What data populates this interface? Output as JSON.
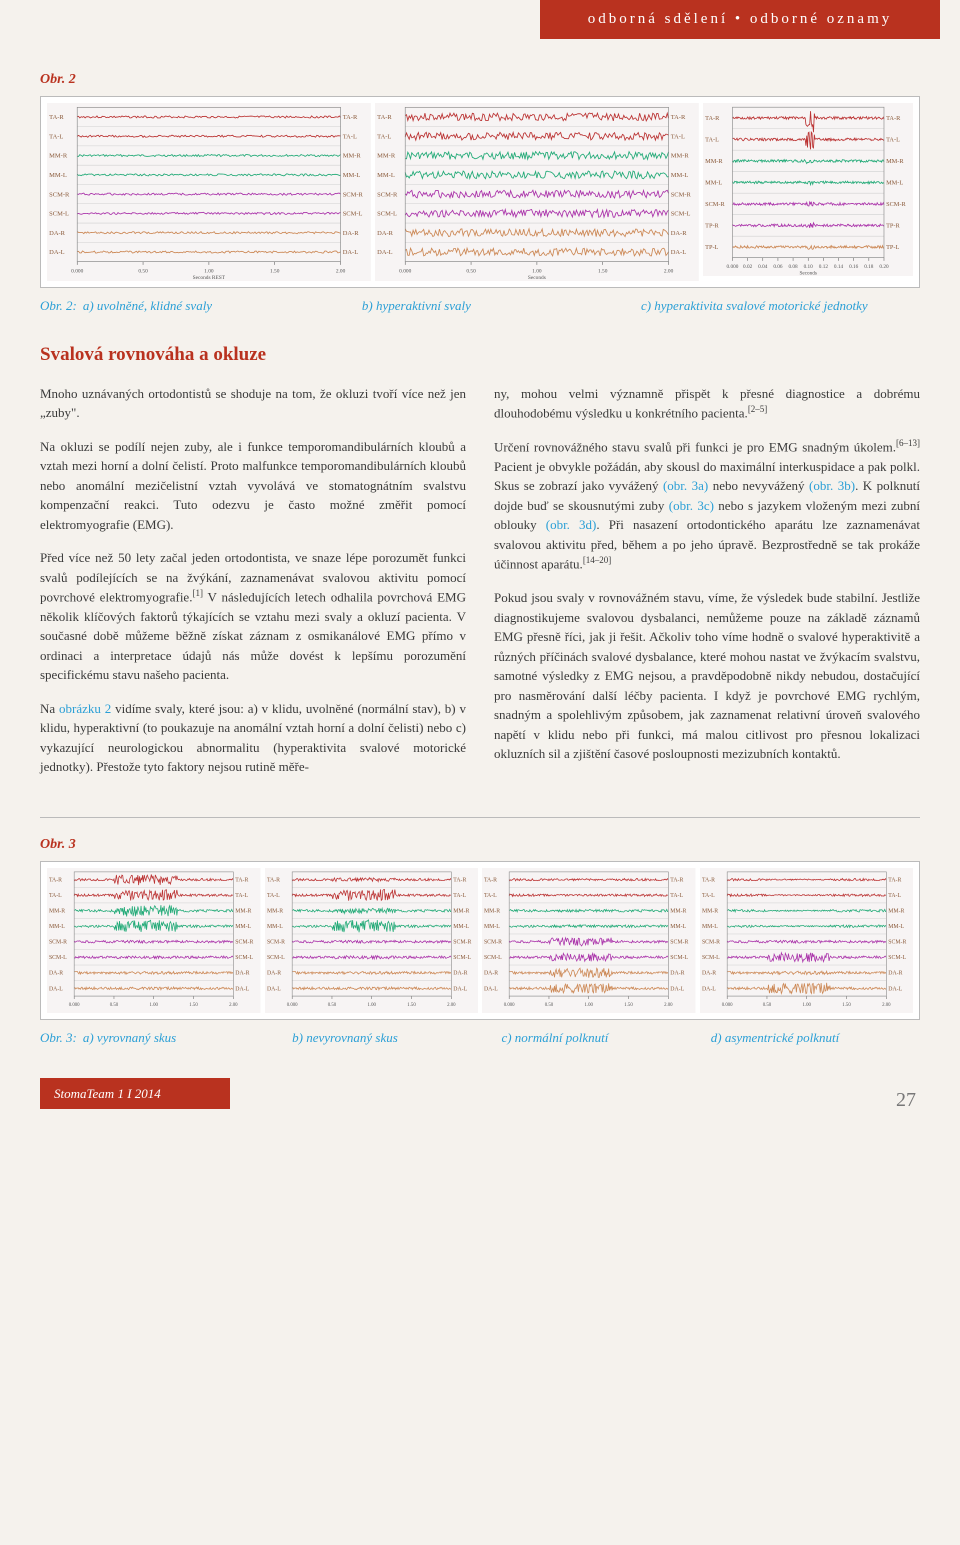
{
  "header_band": "odborná sdělení • odborné oznamy",
  "fig2": {
    "label": "Obr. 2",
    "caption_pre": "Obr. 2:",
    "captions": [
      "a) uvolněné, klidné svaly",
      "b) hyperaktivní svaly",
      "c) hyperaktivita svalové motorické jednotky"
    ],
    "channels": [
      "TA-R",
      "TA-L",
      "MM-R",
      "MM-L",
      "SCM-R",
      "SCM-L",
      "DA-R",
      "DA-L"
    ],
    "channels_right_c": [
      "TA-R",
      "TA-L",
      "MM-R",
      "MM-L",
      "SCM-R",
      "TP-R",
      "TP-L"
    ],
    "label_fontsize": 6,
    "label_color": "#8a5a3a",
    "channel_colors": [
      "#b33",
      "#b33",
      "#2a7",
      "#2a7",
      "#a3a",
      "#a3a",
      "#c85",
      "#c85"
    ],
    "background": "#f7f4f4",
    "gridline_color": "#d0d0d0",
    "xaxis_a": {
      "min": 0,
      "max": 2.0,
      "ticks": [
        0.0,
        0.5,
        1.0,
        1.5,
        2.0
      ],
      "label": "Seconds REST"
    },
    "xaxis_b": {
      "min": 0,
      "max": 2.0,
      "ticks": [
        0.0,
        0.5,
        1.0,
        1.5,
        2.0
      ],
      "label": "Seconds"
    },
    "xaxis_c": {
      "min": 0,
      "max": 0.2,
      "ticks": [
        0.0,
        0.02,
        0.04,
        0.06,
        0.08,
        0.1,
        0.12,
        0.14,
        0.16,
        0.18,
        0.2
      ],
      "label": "Seconds"
    },
    "amplitude_a": 0.12,
    "amplitude_b": 0.45,
    "amplitude_c_burst": 0.7
  },
  "heading": "Svalová rovnováha a okluze",
  "col1": {
    "p1": "Mnoho uznávaných ortodontistů se shoduje na tom, že okluzi tvoří více než jen „zuby\".",
    "p2": "Na okluzi se podílí nejen zuby, ale i funkce temporomandibulárních kloubů a vztah mezi horní a dolní čelistí. Proto malfunkce temporomandibulárních kloubů nebo anomální mezičelistní vztah vyvolává ve stomatognátním svalstvu kompenzační reakci. Tuto odezvu je často možné změřit pomocí elektromyografie (EMG).",
    "p3_a": "Před více než 50 lety začal jeden ortodontista, ve snaze lépe porozumět funkci svalů podílejících se na žvýkání, zaznamenávat svalovou aktivitu pomocí povrchové elektromyografie.",
    "p3_sup": "[1]",
    "p3_b": " V následujících letech odhalila povrchová EMG několik klíčových faktorů týkajících se vztahu mezi svaly a okluzí pacienta. V současné době můžeme běžně získat záznam z osmikanálové EMG přímo v ordinaci a interpretace údajů nás může dovést k lepšímu porozumění specifickému stavu našeho pacienta.",
    "p4_a": "Na ",
    "p4_link": "obrázku 2",
    "p4_b": " vidíme svaly, které jsou: a) v klidu, uvolněné (normální stav), b) v klidu, hyperaktivní (to poukazuje na anomální vztah horní a dolní čelisti) nebo c) vykazující neurologickou abnormalitu (hyperaktivita svalové motorické jednotky). Přestože tyto faktory nejsou rutině měře-"
  },
  "col2": {
    "p1_a": "ny, mohou velmi významně přispět k přesné diagnostice a dobrému dlouhodobému výsledku u konkrétního pacienta.",
    "p1_sup": "[2–5]",
    "p2_a": "Určení rovnovážného stavu svalů při funkci je pro EMG snadným úkolem.",
    "p2_sup": "[6–13]",
    "p2_b": " Pacient je obvykle požádán, aby skousl do maximální interkuspidace a pak polkl. Skus se zobrazí jako vyvážený ",
    "p2_link1": "(obr. 3a)",
    "p2_c": " nebo nevyvážený ",
    "p2_link2": "(obr. 3b)",
    "p2_d": ". K polknutí dojde buď se skousnutými zuby ",
    "p2_link3": "(obr. 3c)",
    "p2_e": " nebo s jazykem vloženým mezi zubní oblouky ",
    "p2_link4": "(obr. 3d)",
    "p2_f": ". Při nasazení ortodontického aparátu lze zaznamenávat svalovou aktivitu před, během a po jeho úpravě. Bezprostředně se tak prokáže účinnost aparátu.",
    "p2_sup2": "[14–20]",
    "p3": "Pokud jsou svaly v rovnovážném stavu, víme, že výsledek bude stabilní. Jestliže diagnostikujeme svalovou dysbalanci, nemůžeme pouze na základě záznamů EMG přesně říci, jak ji řešit. Ačkoliv toho víme hodně o svalové hyperaktivitě a různých příčinách svalové dysbalance, které mohou nastat ve žvýkacím svalstvu, samotné výsledky z EMG nejsou, a pravděpodobně nikdy nebudou, dostačující pro nasměrování další léčby pacienta. I když je povrchové EMG rychlým, snadným a spolehlivým způsobem, jak zaznamenat relativní úroveň svalového napětí v klidu nebo při funkci, má malou citlivost pro přesnou lokalizaci okluzních sil a zjištění časové posloupnosti mezizubních kontaktů."
  },
  "fig3": {
    "label": "Obr. 3",
    "caption_pre": "Obr. 3:",
    "captions": [
      "a) vyrovnaný skus",
      "b) nevyrovnaný skus",
      "c) normální polknutí",
      "d) asymentrické polknutí"
    ],
    "channels": [
      "TA-R",
      "TA-L",
      "MM-R",
      "MM-L",
      "SCM-R",
      "SCM-L",
      "DA-R",
      "DA-L"
    ],
    "channel_colors": [
      "#b33",
      "#b33",
      "#2a7",
      "#2a7",
      "#a3a",
      "#a3a",
      "#c85",
      "#c85"
    ],
    "xaxis": {
      "min": 0,
      "max": 2.0,
      "ticks": [
        0.0,
        0.5,
        1.0,
        1.5,
        2.0
      ]
    },
    "burst_amp_balanced": [
      0.8,
      0.8,
      0.85,
      0.85,
      0.2,
      0.2,
      0.2,
      0.2
    ],
    "burst_amp_unbalanced": [
      0.3,
      0.85,
      0.4,
      0.9,
      0.2,
      0.25,
      0.2,
      0.2
    ],
    "swallow_amp_normal": [
      0.15,
      0.15,
      0.2,
      0.2,
      0.6,
      0.6,
      0.7,
      0.7
    ],
    "swallow_amp_asym": [
      0.1,
      0.1,
      0.1,
      0.1,
      0.2,
      0.7,
      0.25,
      0.8
    ]
  },
  "footer": "StomaTeam 1  I  2014",
  "page_num": "27"
}
